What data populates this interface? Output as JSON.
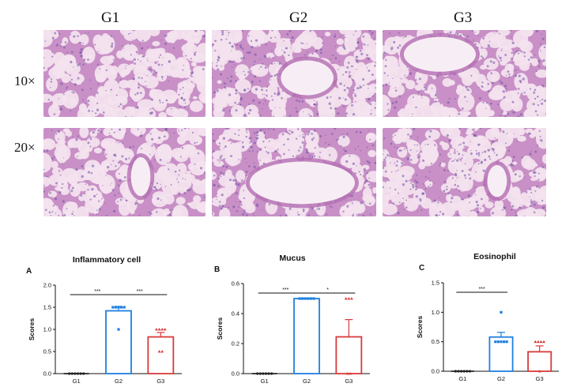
{
  "micrograph_panel": {
    "columns": [
      "G1",
      "G2",
      "G3"
    ],
    "rows": [
      "10×",
      "20×"
    ]
  },
  "colors": {
    "G1": "#222222",
    "G2": "#1f7fe0",
    "G3": "#d93a3a",
    "stain_bg": "#f3e1ee",
    "stain_tissue": "#c890c6",
    "stain_nuclei": "#6e4ea6"
  },
  "chart_data": [
    {
      "type": "bar",
      "panel": "A",
      "title": "Inflammatory cell",
      "ylabel": "Scores",
      "categories": [
        "G1",
        "G2",
        "G3"
      ],
      "values": [
        0,
        1.42,
        0.83
      ],
      "errors": [
        0,
        0.1,
        0.1
      ],
      "points": [
        [
          0,
          0,
          0,
          0,
          0,
          0
        ],
        [
          1.5,
          1.5,
          1.5,
          1.5,
          1.5,
          1.0
        ],
        [
          1.0,
          1.0,
          1.0,
          1.0,
          0.5,
          0.5
        ]
      ],
      "ylim": [
        0,
        2.0
      ],
      "yticks": [
        "0.0",
        "0.5",
        "1.0",
        "1.5",
        "2.0"
      ],
      "significance": [
        {
          "from": 0,
          "to": 1,
          "label": "***"
        },
        {
          "from": 1,
          "to": 2,
          "label": "***"
        }
      ]
    },
    {
      "type": "bar",
      "panel": "B",
      "title": "Mucus",
      "ylabel": "Scores",
      "categories": [
        "G1",
        "G2",
        "G3"
      ],
      "values": [
        0,
        0.5,
        0.245
      ],
      "errors": [
        0,
        0,
        0.115
      ],
      "points": [
        [
          0,
          0,
          0,
          0,
          0,
          0
        ],
        [
          0.5,
          0.5,
          0.5,
          0.5,
          0.5,
          0.5
        ],
        [
          0.5,
          0.5,
          0.5,
          0,
          0
        ]
      ],
      "ylim": [
        0,
        0.6
      ],
      "yticks": [
        "0.0",
        "0.2",
        "0.4",
        "0.6"
      ],
      "significance": [
        {
          "from": 0,
          "to": 1,
          "label": "***"
        },
        {
          "from": 1,
          "to": 2,
          "label": "*"
        }
      ]
    },
    {
      "type": "bar",
      "panel": "C",
      "title": "Eosinophil",
      "ylabel": "Scores",
      "categories": [
        "G1",
        "G2",
        "G3"
      ],
      "values": [
        0,
        0.58,
        0.33
      ],
      "errors": [
        0,
        0.08,
        0.1
      ],
      "points": [
        [
          0,
          0,
          0,
          0,
          0,
          0
        ],
        [
          1.0,
          0.5,
          0.5,
          0.5,
          0.5,
          0.5
        ],
        [
          0.5,
          0.5,
          0.5,
          0.5,
          0
        ]
      ],
      "ylim": [
        0,
        1.5
      ],
      "yticks": [
        "0.0",
        "0.5",
        "1.0",
        "1.5"
      ],
      "significance": [
        {
          "from": 0,
          "to": 1,
          "label": "***"
        }
      ]
    }
  ]
}
